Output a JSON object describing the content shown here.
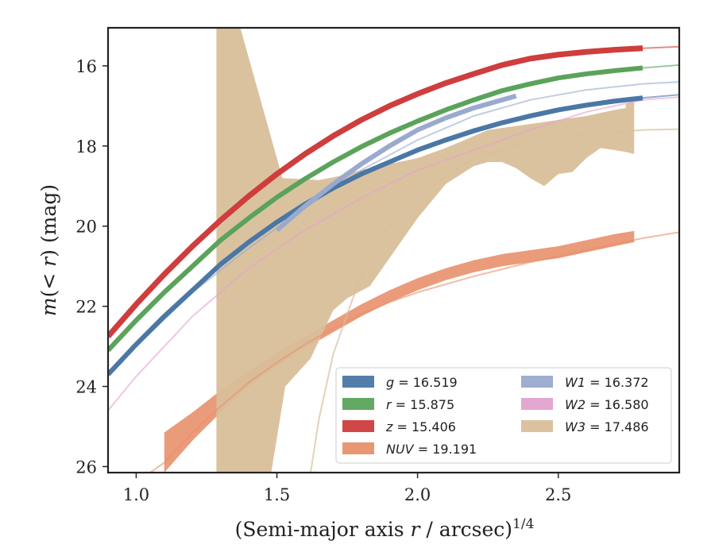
{
  "chart_data": {
    "type": "line",
    "title": "",
    "xlabel": "(Semi-major axis r / arcsec)^{1/4}",
    "ylabel": "m(< r) (mag)",
    "xlim": [
      0.9,
      2.93
    ],
    "ylim": [
      26.15,
      15.05
    ],
    "y_inverted": true,
    "x_ticks": [
      1.0,
      1.5,
      2.0,
      2.5
    ],
    "x_tick_labels": [
      "1.0",
      "1.5",
      "2.0",
      "2.5"
    ],
    "y_ticks": [
      16,
      18,
      20,
      22,
      24,
      26
    ],
    "y_tick_labels": [
      "16",
      "18",
      "20",
      "22",
      "24",
      "26"
    ],
    "legend_position": "lower-right",
    "legend_columns": 2,
    "series": [
      {
        "name": "g = 16.519",
        "legend_italic": "g",
        "legend_value": "16.519",
        "color": "#4a77a6",
        "band_width": 0.12,
        "data": [
          [
            0.9,
            23.7
          ],
          [
            1.0,
            22.95
          ],
          [
            1.1,
            22.25
          ],
          [
            1.2,
            21.6
          ],
          [
            1.3,
            20.95
          ],
          [
            1.4,
            20.4
          ],
          [
            1.5,
            19.9
          ],
          [
            1.6,
            19.45
          ],
          [
            1.7,
            19.05
          ],
          [
            1.8,
            18.7
          ],
          [
            1.9,
            18.4
          ],
          [
            2.0,
            18.1
          ],
          [
            2.1,
            17.85
          ],
          [
            2.2,
            17.62
          ],
          [
            2.3,
            17.42
          ],
          [
            2.4,
            17.25
          ],
          [
            2.5,
            17.1
          ],
          [
            2.6,
            16.98
          ],
          [
            2.7,
            16.88
          ],
          [
            2.8,
            16.8
          ]
        ],
        "model": [
          [
            0.9,
            23.7
          ],
          [
            1.0,
            22.95
          ],
          [
            1.2,
            21.6
          ],
          [
            1.4,
            20.4
          ],
          [
            1.6,
            19.45
          ],
          [
            1.8,
            18.7
          ],
          [
            2.0,
            18.1
          ],
          [
            2.2,
            17.62
          ],
          [
            2.4,
            17.25
          ],
          [
            2.6,
            16.98
          ],
          [
            2.8,
            16.8
          ],
          [
            2.93,
            16.72
          ]
        ]
      },
      {
        "name": "r = 15.875",
        "legend_italic": "r",
        "legend_value": "15.875",
        "color": "#5ba35b",
        "band_width": 0.12,
        "data": [
          [
            0.9,
            23.1
          ],
          [
            1.0,
            22.35
          ],
          [
            1.1,
            21.65
          ],
          [
            1.2,
            21.0
          ],
          [
            1.3,
            20.35
          ],
          [
            1.4,
            19.8
          ],
          [
            1.5,
            19.28
          ],
          [
            1.6,
            18.82
          ],
          [
            1.7,
            18.4
          ],
          [
            1.8,
            18.02
          ],
          [
            1.9,
            17.68
          ],
          [
            2.0,
            17.38
          ],
          [
            2.1,
            17.1
          ],
          [
            2.2,
            16.85
          ],
          [
            2.3,
            16.62
          ],
          [
            2.4,
            16.45
          ],
          [
            2.5,
            16.3
          ],
          [
            2.6,
            16.2
          ],
          [
            2.7,
            16.12
          ],
          [
            2.8,
            16.05
          ]
        ],
        "model": [
          [
            0.9,
            23.1
          ],
          [
            1.0,
            22.35
          ],
          [
            1.2,
            21.0
          ],
          [
            1.4,
            19.8
          ],
          [
            1.6,
            18.82
          ],
          [
            1.8,
            18.02
          ],
          [
            2.0,
            17.38
          ],
          [
            2.2,
            16.85
          ],
          [
            2.4,
            16.45
          ],
          [
            2.6,
            16.2
          ],
          [
            2.8,
            16.05
          ],
          [
            2.93,
            15.98
          ]
        ]
      },
      {
        "name": "z = 15.406",
        "legend_italic": "z",
        "legend_value": "15.406",
        "color": "#cf3d3d",
        "band_width": 0.14,
        "data": [
          [
            0.9,
            22.75
          ],
          [
            1.0,
            21.95
          ],
          [
            1.1,
            21.2
          ],
          [
            1.2,
            20.5
          ],
          [
            1.3,
            19.85
          ],
          [
            1.4,
            19.25
          ],
          [
            1.5,
            18.7
          ],
          [
            1.6,
            18.2
          ],
          [
            1.7,
            17.75
          ],
          [
            1.8,
            17.35
          ],
          [
            1.9,
            17.0
          ],
          [
            2.0,
            16.7
          ],
          [
            2.1,
            16.43
          ],
          [
            2.2,
            16.2
          ],
          [
            2.3,
            15.98
          ],
          [
            2.4,
            15.82
          ],
          [
            2.5,
            15.72
          ],
          [
            2.6,
            15.65
          ],
          [
            2.7,
            15.6
          ],
          [
            2.8,
            15.56
          ]
        ],
        "model": [
          [
            0.9,
            22.75
          ],
          [
            1.0,
            21.95
          ],
          [
            1.2,
            20.5
          ],
          [
            1.4,
            19.25
          ],
          [
            1.6,
            18.2
          ],
          [
            1.8,
            17.35
          ],
          [
            2.0,
            16.7
          ],
          [
            2.2,
            16.2
          ],
          [
            2.4,
            15.82
          ],
          [
            2.6,
            15.65
          ],
          [
            2.8,
            15.56
          ],
          [
            2.93,
            15.52
          ]
        ]
      },
      {
        "name": "NUV = 19.191",
        "legend_italic": "NUV",
        "legend_value": "19.191",
        "color": "#e8906b",
        "band_width": 0.3,
        "data": [
          [
            1.11,
            25.8
          ],
          [
            1.2,
            25.0
          ],
          [
            1.3,
            24.35
          ],
          [
            1.4,
            23.75
          ],
          [
            1.5,
            23.3
          ],
          [
            1.6,
            22.9
          ],
          [
            1.7,
            22.5
          ],
          [
            1.8,
            22.1
          ],
          [
            1.9,
            21.75
          ],
          [
            2.0,
            21.45
          ],
          [
            2.1,
            21.2
          ],
          [
            2.2,
            21.0
          ],
          [
            2.3,
            20.85
          ],
          [
            2.4,
            20.75
          ],
          [
            2.5,
            20.65
          ],
          [
            2.6,
            20.5
          ],
          [
            2.7,
            20.35
          ],
          [
            2.77,
            20.25
          ]
        ],
        "band_upper": [
          [
            1.1,
            25.15
          ],
          [
            1.2,
            24.65
          ],
          [
            1.3,
            24.1
          ],
          [
            1.4,
            23.6
          ],
          [
            1.5,
            23.15
          ],
          [
            1.6,
            22.75
          ],
          [
            1.7,
            22.35
          ],
          [
            1.8,
            21.95
          ],
          [
            1.9,
            21.6
          ],
          [
            2.0,
            21.3
          ],
          [
            2.1,
            21.05
          ],
          [
            2.2,
            20.85
          ],
          [
            2.3,
            20.7
          ],
          [
            2.4,
            20.6
          ],
          [
            2.5,
            20.5
          ],
          [
            2.6,
            20.35
          ],
          [
            2.7,
            20.2
          ],
          [
            2.77,
            20.12
          ]
        ],
        "band_lower": [
          [
            1.1,
            26.15
          ],
          [
            1.2,
            25.35
          ],
          [
            1.3,
            24.65
          ],
          [
            1.4,
            24.0
          ],
          [
            1.5,
            23.5
          ],
          [
            1.6,
            23.05
          ],
          [
            1.7,
            22.65
          ],
          [
            1.8,
            22.25
          ],
          [
            1.9,
            21.9
          ],
          [
            2.0,
            21.6
          ],
          [
            2.1,
            21.35
          ],
          [
            2.2,
            21.15
          ],
          [
            2.3,
            21.0
          ],
          [
            2.4,
            20.9
          ],
          [
            2.5,
            20.8
          ],
          [
            2.6,
            20.65
          ],
          [
            2.7,
            20.5
          ],
          [
            2.77,
            20.4
          ]
        ],
        "model": [
          [
            1.05,
            26.15
          ],
          [
            1.1,
            25.9
          ],
          [
            1.2,
            25.15
          ],
          [
            1.3,
            24.5
          ],
          [
            1.4,
            23.9
          ],
          [
            1.5,
            23.4
          ],
          [
            1.6,
            22.95
          ],
          [
            1.7,
            22.55
          ],
          [
            1.8,
            22.2
          ],
          [
            1.9,
            21.9
          ],
          [
            2.0,
            21.65
          ],
          [
            2.2,
            21.25
          ],
          [
            2.4,
            20.9
          ],
          [
            2.6,
            20.6
          ],
          [
            2.8,
            20.3
          ],
          [
            2.93,
            20.15
          ]
        ]
      },
      {
        "name": "W1 = 16.372",
        "legend_italic": "W1",
        "legend_value": "16.372",
        "color": "#9aaace",
        "band_width": 0.12,
        "data": [
          [
            1.5,
            20.1
          ],
          [
            1.6,
            19.5
          ],
          [
            1.7,
            18.95
          ],
          [
            1.8,
            18.45
          ],
          [
            1.9,
            18.0
          ],
          [
            2.0,
            17.6
          ],
          [
            2.1,
            17.3
          ],
          [
            2.2,
            17.05
          ],
          [
            2.3,
            16.85
          ],
          [
            2.35,
            16.75
          ]
        ],
        "model": [
          [
            0.9,
            23.7
          ],
          [
            1.0,
            23.0
          ],
          [
            1.2,
            21.65
          ],
          [
            1.4,
            20.55
          ],
          [
            1.6,
            19.55
          ],
          [
            1.8,
            18.6
          ],
          [
            2.0,
            17.85
          ],
          [
            2.2,
            17.25
          ],
          [
            2.4,
            16.85
          ],
          [
            2.6,
            16.6
          ],
          [
            2.8,
            16.45
          ],
          [
            2.93,
            16.4
          ]
        ]
      },
      {
        "name": "W2 = 16.580",
        "legend_italic": "W2",
        "legend_value": "16.580",
        "color": "#e3a2cf",
        "band_width": 0.1,
        "data": [],
        "model": [
          [
            0.9,
            24.6
          ],
          [
            1.0,
            23.75
          ],
          [
            1.2,
            22.25
          ],
          [
            1.4,
            21.05
          ],
          [
            1.6,
            20.1
          ],
          [
            1.8,
            19.3
          ],
          [
            2.0,
            18.6
          ],
          [
            2.2,
            18.1
          ],
          [
            2.4,
            17.6
          ],
          [
            2.6,
            17.15
          ],
          [
            2.8,
            16.85
          ],
          [
            2.93,
            16.78
          ]
        ]
      },
      {
        "name": "W3 = 17.486",
        "legend_italic": "W3",
        "legend_value": "17.486",
        "color": "#d9bf9a",
        "band_width": 0.0,
        "data": [],
        "band_upper": [
          [
            1.285,
            15.05
          ],
          [
            1.37,
            15.05
          ],
          [
            1.52,
            18.8
          ],
          [
            1.65,
            18.85
          ],
          [
            1.72,
            18.75
          ],
          [
            1.8,
            18.6
          ],
          [
            1.9,
            18.45
          ],
          [
            2.0,
            18.3
          ],
          [
            2.1,
            18.05
          ],
          [
            2.2,
            17.75
          ],
          [
            2.25,
            17.6
          ],
          [
            2.3,
            17.55
          ],
          [
            2.4,
            17.45
          ],
          [
            2.5,
            17.35
          ],
          [
            2.6,
            17.25
          ],
          [
            2.7,
            17.1
          ],
          [
            2.74,
            17.05
          ],
          [
            2.74,
            16.95
          ],
          [
            2.76,
            16.9
          ],
          [
            2.77,
            16.9
          ]
        ],
        "band_lower": [
          [
            1.285,
            26.15
          ],
          [
            1.48,
            26.15
          ],
          [
            1.53,
            24.0
          ],
          [
            1.62,
            23.3
          ],
          [
            1.7,
            22.1
          ],
          [
            1.75,
            21.8
          ],
          [
            1.83,
            21.5
          ],
          [
            1.9,
            20.8
          ],
          [
            2.0,
            19.8
          ],
          [
            2.1,
            18.95
          ],
          [
            2.2,
            18.5
          ],
          [
            2.25,
            18.4
          ],
          [
            2.3,
            18.4
          ],
          [
            2.35,
            18.55
          ],
          [
            2.4,
            18.8
          ],
          [
            2.45,
            19.0
          ],
          [
            2.5,
            18.7
          ],
          [
            2.55,
            18.65
          ],
          [
            2.6,
            18.3
          ],
          [
            2.65,
            18.05
          ],
          [
            2.7,
            18.1
          ],
          [
            2.74,
            18.15
          ],
          [
            2.77,
            18.2
          ]
        ],
        "model": [
          [
            1.62,
            26.15
          ],
          [
            1.65,
            24.8
          ],
          [
            1.7,
            23.2
          ],
          [
            1.8,
            21.2
          ],
          [
            1.9,
            20.0
          ],
          [
            2.0,
            19.2
          ],
          [
            2.2,
            18.3
          ],
          [
            2.4,
            17.9
          ],
          [
            2.6,
            17.7
          ],
          [
            2.8,
            17.6
          ],
          [
            2.93,
            17.58
          ]
        ]
      }
    ]
  }
}
